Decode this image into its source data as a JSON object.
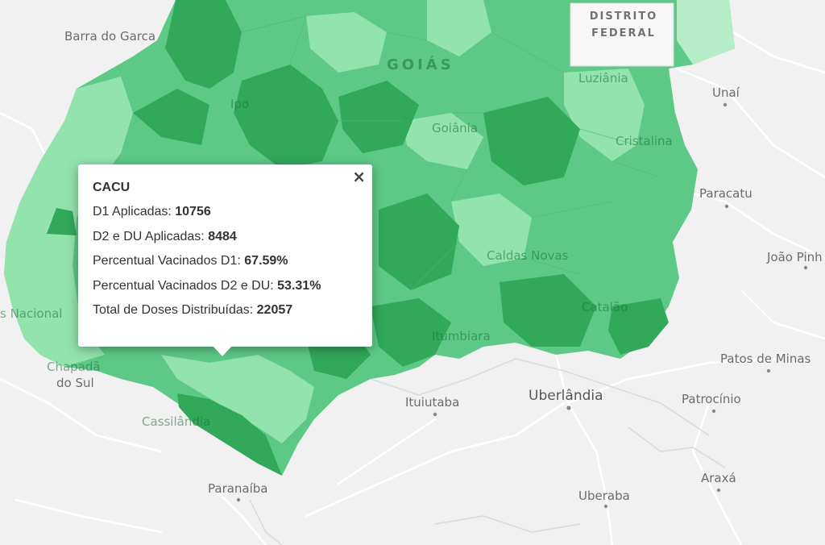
{
  "map": {
    "colors": {
      "background": "#f1f1f1",
      "dark_green": "#31a85a",
      "mid_green": "#5ec987",
      "light_green": "#93e3ae",
      "lightest_green": "#b5edc6"
    },
    "state_label": "GOIÁS",
    "district": {
      "line1": "DISTRITO",
      "line2": "FEDERAL"
    },
    "cities": {
      "barra_do_garcas": "Barra do Garca",
      "luziania": "Luziânia",
      "unai": "Unaí",
      "cristalina": "Cristalina",
      "paracatu": "Paracatu",
      "joao_pinheiro": "João Pinh",
      "caldas_novas": "Caldas Novas",
      "catalao": "Catalão",
      "patos_de_minas": "Patos de Minas",
      "itumbiara": "Itumbiara",
      "uberlandia": "Uberlândia",
      "patrocinio": "Patrocínio",
      "ituiutaba": "Ituiutaba",
      "cassilandia": "Cassilândia",
      "paranaiba": "Paranaíba",
      "araxa": "Araxá",
      "uberaba": "Uberaba",
      "chapadao_do_sul_1": "Chapadã",
      "chapadao_do_sul_2": "do Sul",
      "parque_nacional": "s Nacional",
      "goiania": "Goiânia",
      "ipo": "Ipo"
    }
  },
  "popup": {
    "title": "CACU",
    "close_icon": "×",
    "d1_label": "D1 Aplicadas: ",
    "d1_value": "10756",
    "d2_label": "D2 e DU Aplicadas: ",
    "d2_value": "8484",
    "pct_d1_label": "Percentual Vacinados D1: ",
    "pct_d1_value": "67.59%",
    "pct_d2_label": "Percentual Vacinados D2 e DU: ",
    "pct_d2_value": "53.31%",
    "total_label": "Total de Doses Distribuídas: ",
    "total_value": "22057"
  }
}
